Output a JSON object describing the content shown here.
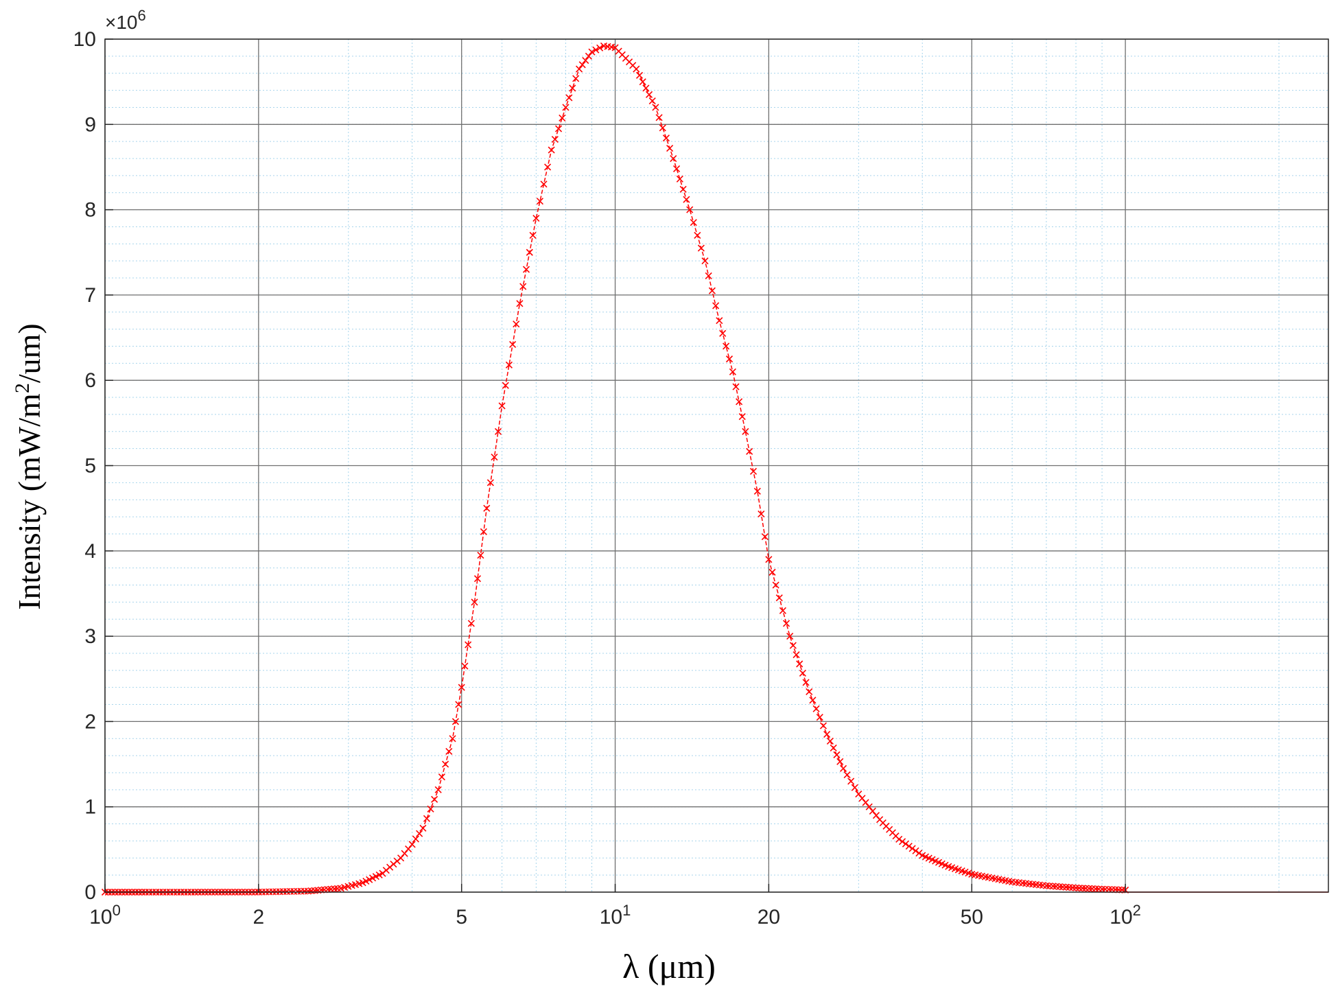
{
  "chart_data": {
    "type": "line",
    "title": "",
    "xlabel": "λ (μm)",
    "ylabel_main": "Intensity (mW/m",
    "ylabel_sup": "2",
    "ylabel_tail": "/um)",
    "y_exponent_prefix": "×10",
    "y_exponent_power": "6",
    "x_scale": "log",
    "xlim": [
      1,
      250
    ],
    "ylim": [
      0,
      10000000
    ],
    "x_ticks": [
      {
        "value": 1,
        "base": "10",
        "sup": "0"
      },
      {
        "value": 2,
        "base": "2",
        "sup": ""
      },
      {
        "value": 5,
        "base": "5",
        "sup": ""
      },
      {
        "value": 10,
        "base": "10",
        "sup": "1"
      },
      {
        "value": 20,
        "base": "20",
        "sup": ""
      },
      {
        "value": 50,
        "base": "50",
        "sup": ""
      },
      {
        "value": 100,
        "base": "10",
        "sup": "2"
      }
    ],
    "y_ticks": [
      "0",
      "1",
      "2",
      "3",
      "4",
      "5",
      "6",
      "7",
      "8",
      "9",
      "10"
    ],
    "grid": true,
    "minor_grid": true,
    "series": [
      {
        "color": "#ff0000",
        "marker": "x",
        "line_style": "dashed",
        "points": [
          [
            1.0,
            0
          ],
          [
            1.2,
            0
          ],
          [
            1.5,
            0
          ],
          [
            2.0,
            1000
          ],
          [
            2.5,
            12000
          ],
          [
            2.9,
            45000
          ],
          [
            3.2,
            110000
          ],
          [
            3.5,
            220000
          ],
          [
            3.8,
            400000
          ],
          [
            4.0,
            560000
          ],
          [
            4.2,
            750000
          ],
          [
            4.5,
            1200000
          ],
          [
            4.8,
            1800000
          ],
          [
            5.0,
            2400000
          ],
          [
            5.3,
            3400000
          ],
          [
            5.6,
            4500000
          ],
          [
            6.0,
            5700000
          ],
          [
            6.5,
            6900000
          ],
          [
            7.0,
            7900000
          ],
          [
            7.5,
            8700000
          ],
          [
            8.0,
            9200000
          ],
          [
            8.5,
            9650000
          ],
          [
            9.0,
            9850000
          ],
          [
            9.5,
            9920000
          ],
          [
            10.0,
            9900000
          ],
          [
            11.0,
            9650000
          ],
          [
            12.0,
            9200000
          ],
          [
            13.0,
            8600000
          ],
          [
            14.0,
            8000000
          ],
          [
            15.0,
            7400000
          ],
          [
            16.0,
            6700000
          ],
          [
            17.0,
            6100000
          ],
          [
            18.0,
            5400000
          ],
          [
            19.0,
            4700000
          ],
          [
            20.0,
            3900000
          ],
          [
            22.0,
            3000000
          ],
          [
            24.0,
            2350000
          ],
          [
            26.0,
            1850000
          ],
          [
            28.0,
            1450000
          ],
          [
            30.0,
            1150000
          ],
          [
            33.0,
            850000
          ],
          [
            36.0,
            620000
          ],
          [
            40.0,
            430000
          ],
          [
            45.0,
            300000
          ],
          [
            50.0,
            210000
          ],
          [
            60.0,
            120000
          ],
          [
            70.0,
            75000
          ],
          [
            80.0,
            50000
          ],
          [
            90.0,
            35000
          ],
          [
            100.0,
            25000
          ]
        ]
      }
    ]
  }
}
